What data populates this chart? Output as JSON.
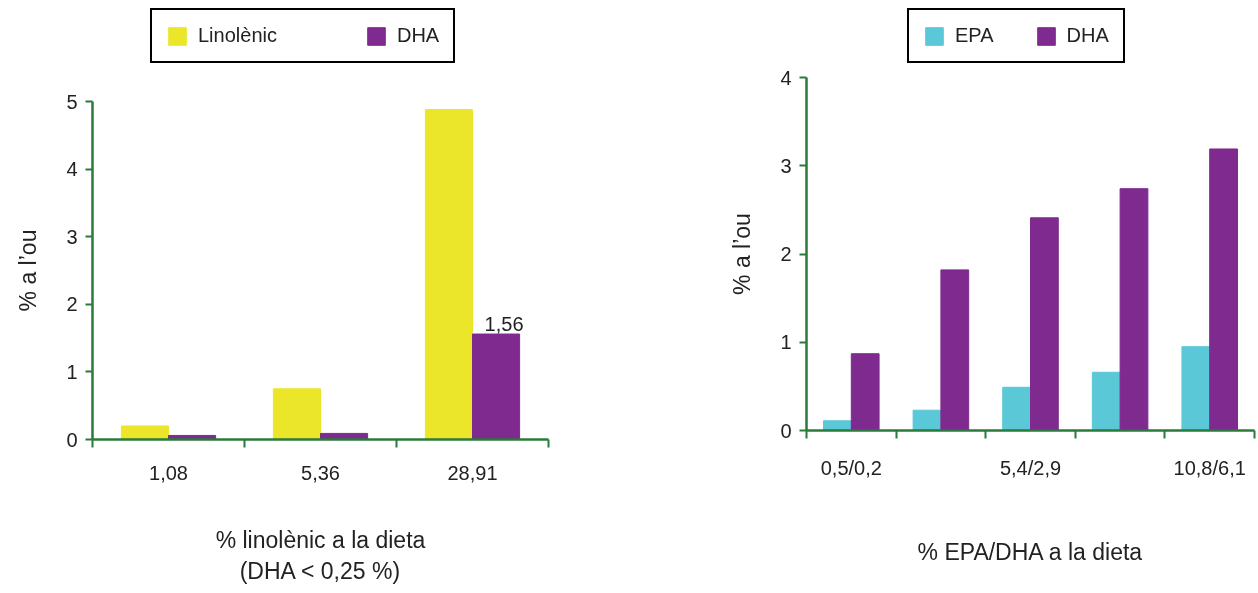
{
  "chart_data": [
    {
      "type": "bar",
      "categories": [
        "1,08",
        "5,36",
        "28,91"
      ],
      "xlabel": "% linolènic a la dieta\n(DHA < 0,25 %)",
      "ylabel": "% a l’ou",
      "series": [
        {
          "name": "Linolènic",
          "color": "#ebe62a",
          "values": [
            0.2,
            0.75,
            4.88
          ]
        },
        {
          "name": "DHA",
          "color": "#7e2a8e",
          "values": [
            0.06,
            0.09,
            1.56
          ],
          "value_labels": [
            null,
            null,
            "1,56"
          ]
        }
      ],
      "ylim": [
        0,
        5
      ],
      "yticks": [
        0,
        1,
        2,
        3,
        4,
        5
      ],
      "legend": "top",
      "grid": false
    },
    {
      "type": "bar",
      "categories": [
        "0,5/0,2",
        null,
        "5,4/2,9",
        null,
        "10,8/6,1"
      ],
      "xlabel": "% EPA/DHA a la dieta",
      "ylabel": "% a l’ou",
      "series": [
        {
          "name": "EPA",
          "color": "#5bc8d8",
          "values": [
            0.11,
            0.23,
            0.49,
            0.66,
            0.95
          ]
        },
        {
          "name": "DHA",
          "color": "#7e2a8e",
          "values": [
            0.87,
            1.82,
            2.41,
            2.74,
            3.19
          ]
        }
      ],
      "ylim": [
        0,
        4
      ],
      "yticks": [
        0,
        1,
        2,
        3,
        4
      ],
      "legend": "top",
      "grid": false
    }
  ]
}
